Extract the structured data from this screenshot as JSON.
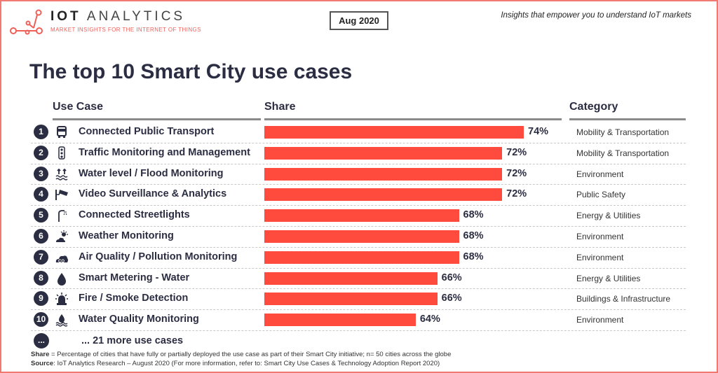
{
  "header": {
    "logo_name": "IOT ANALYTICS",
    "logo_name_bold": "IOT",
    "logo_name_rest": "ANALYTICS",
    "logo_subtitle": "MARKET INSIGHTS FOR THE INTERNET OF THINGS",
    "date": "Aug 2020",
    "tagline": "Insights that empower you to understand IoT markets",
    "brand_color": "#f0605a"
  },
  "title": "The top 10 Smart City use cases",
  "columns": {
    "use_case": "Use Case",
    "share": "Share",
    "category": "Category"
  },
  "chart_data": {
    "type": "bar",
    "orientation": "horizontal",
    "title": "The top 10 Smart City use cases",
    "bar_color": "#ff4b3e",
    "xlim": [
      50,
      80
    ],
    "categories": [
      "Connected Public Transport",
      "Traffic Monitoring and Management",
      "Water level / Flood Monitoring",
      "Video Surveillance & Analytics",
      "Connected Streetlights",
      "Weather Monitoring",
      "Air Quality / Pollution Monitoring",
      "Smart Metering - Water",
      "Fire / Smoke Detection",
      "Water Quality Monitoring"
    ],
    "values": [
      74,
      72,
      72,
      72,
      68,
      68,
      68,
      66,
      66,
      64
    ],
    "value_labels": [
      "74%",
      "72%",
      "72%",
      "72%",
      "68%",
      "68%",
      "68%",
      "66%",
      "66%",
      "64%"
    ]
  },
  "rows": [
    {
      "rank": "1",
      "icon": "bus-icon",
      "label": "Connected Public Transport",
      "category": "Mobility & Transportation"
    },
    {
      "rank": "2",
      "icon": "traffic-light-icon",
      "label": "Traffic Monitoring and Management",
      "category": "Mobility & Transportation"
    },
    {
      "rank": "3",
      "icon": "flood-icon",
      "label": "Water level / Flood Monitoring",
      "category": "Environment"
    },
    {
      "rank": "4",
      "icon": "camera-icon",
      "label": "Video Surveillance & Analytics",
      "category": "Public Safety"
    },
    {
      "rank": "5",
      "icon": "streetlight-icon",
      "label": "Connected Streetlights",
      "category": "Energy & Utilities"
    },
    {
      "rank": "6",
      "icon": "weather-icon",
      "label": "Weather Monitoring",
      "category": "Environment"
    },
    {
      "rank": "7",
      "icon": "co2-cloud-icon",
      "label": "Air Quality / Pollution Monitoring",
      "category": "Environment"
    },
    {
      "rank": "8",
      "icon": "water-drop-icon",
      "label": "Smart Metering - Water",
      "category": "Energy & Utilities"
    },
    {
      "rank": "9",
      "icon": "alarm-light-icon",
      "label": "Fire / Smoke Detection",
      "category": "Buildings & Infrastructure"
    },
    {
      "rank": "10",
      "icon": "water-quality-icon",
      "label": "Water Quality Monitoring",
      "category": "Environment"
    }
  ],
  "more": {
    "badge": "...",
    "label": "... 21 more use cases"
  },
  "footnotes": {
    "share_key": "Share",
    "share_text": " = Percentage of cities that have fully or partially deployed the use case as part of their Smart City initiative; n= 50 cities across the globe",
    "source_key": "Source",
    "source_text": ": IoT Analytics Research – August 2020 (For more information, refer to: Smart City Use Cases & Technology Adoption Report 2020)"
  }
}
